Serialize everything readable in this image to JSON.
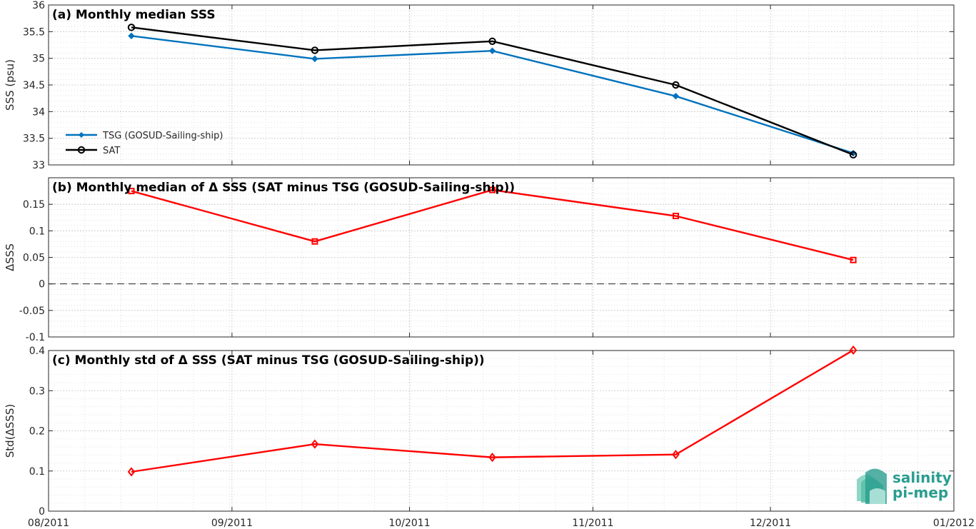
{
  "chart_data": [
    {
      "type": "line",
      "title": "(a) Monthly median SSS",
      "ylabel": "SSS (psu)",
      "xlabel": "",
      "ylim": [
        33,
        36
      ],
      "yticks": [
        "33",
        "33.5",
        "34",
        "34.5",
        "35",
        "35.5",
        "36"
      ],
      "grid": true,
      "legend_position": "bottom-left",
      "x": [
        "2011-08-15",
        "2011-09-15",
        "2011-10-15",
        "2011-11-15",
        "2011-12-15"
      ],
      "series": [
        {
          "name": "TSG (GOSUD-Sailing-ship)",
          "values": [
            35.42,
            34.99,
            35.14,
            34.29,
            33.22
          ],
          "color": "#0072BD",
          "marker": "diamond-filled"
        },
        {
          "name": "SAT",
          "values": [
            35.58,
            35.15,
            35.32,
            34.5,
            33.19
          ],
          "color": "#000000",
          "marker": "circle-open"
        }
      ]
    },
    {
      "type": "line",
      "title": "(b) Monthly median of Δ SSS (SAT minus TSG (GOSUD-Sailing-ship))",
      "ylabel": "ΔSSS",
      "xlabel": "",
      "ylim": [
        -0.1,
        0.2
      ],
      "yticks": [
        "-0.1",
        "-0.05",
        "0",
        "0.05",
        "0.1",
        "0.15"
      ],
      "grid": true,
      "zero_line": true,
      "x": [
        "2011-08-15",
        "2011-09-15",
        "2011-10-15",
        "2011-11-15",
        "2011-12-15"
      ],
      "series": [
        {
          "values": [
            0.175,
            0.08,
            0.177,
            0.128,
            0.045
          ],
          "color": "#FF0000",
          "marker": "square-open"
        }
      ]
    },
    {
      "type": "line",
      "title": "(c) Monthly std of Δ SSS (SAT minus TSG (GOSUD-Sailing-ship))",
      "ylabel": "Std(ΔSSS)",
      "xlabel": "",
      "ylim": [
        0,
        0.4
      ],
      "yticks": [
        "0",
        "0.1",
        "0.2",
        "0.3",
        "0.4"
      ],
      "grid": true,
      "x": [
        "2011-08-15",
        "2011-09-15",
        "2011-10-15",
        "2011-11-15",
        "2011-12-15"
      ],
      "series": [
        {
          "values": [
            0.098,
            0.167,
            0.134,
            0.141,
            0.401
          ],
          "color": "#FF0000",
          "marker": "diamond-open"
        }
      ]
    }
  ],
  "x_axis": {
    "start": "2011-08-01",
    "end": "2012-01-01",
    "ticks": [
      {
        "date": "2011-08-01",
        "label": "08/2011"
      },
      {
        "date": "2011-09-01",
        "label": "09/2011"
      },
      {
        "date": "2011-10-01",
        "label": "10/2011"
      },
      {
        "date": "2011-11-01",
        "label": "11/2011"
      },
      {
        "date": "2011-12-01",
        "label": "12/2011"
      },
      {
        "date": "2012-01-01",
        "label": "01/2012"
      }
    ]
  },
  "logo": {
    "line1": "salinity",
    "line2": "pi-mep",
    "color": "#2a9d8f"
  }
}
